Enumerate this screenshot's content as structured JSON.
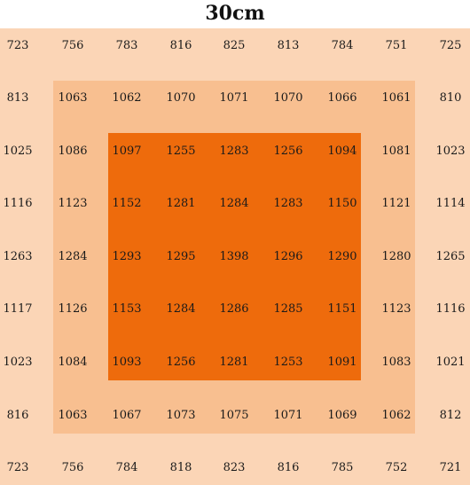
{
  "title": "30cm",
  "colors": {
    "outer": "#fbd5b6",
    "middle": "#f8bf90",
    "inner": "#ee6b0c"
  },
  "rows": [
    [
      "723",
      "756",
      "783",
      "816",
      "825",
      "813",
      "784",
      "751",
      "725"
    ],
    [
      "813",
      "1063",
      "1062",
      "1070",
      "1071",
      "1070",
      "1066",
      "1061",
      "810"
    ],
    [
      "1025",
      "1086",
      "1097",
      "1255",
      "1283",
      "1256",
      "1094",
      "1081",
      "1023"
    ],
    [
      "1116",
      "1123",
      "1152",
      "1281",
      "1284",
      "1283",
      "1150",
      "1121",
      "1114"
    ],
    [
      "1263",
      "1284",
      "1293",
      "1295",
      "1398",
      "1296",
      "1290",
      "1280",
      "1265"
    ],
    [
      "1117",
      "1126",
      "1153",
      "1284",
      "1286",
      "1285",
      "1151",
      "1123",
      "1116"
    ],
    [
      "1023",
      "1084",
      "1093",
      "1256",
      "1281",
      "1253",
      "1091",
      "1083",
      "1021"
    ],
    [
      "816",
      "1063",
      "1067",
      "1073",
      "1075",
      "1071",
      "1069",
      "1062",
      "812"
    ],
    [
      "723",
      "756",
      "784",
      "818",
      "823",
      "816",
      "785",
      "752",
      "721"
    ]
  ]
}
